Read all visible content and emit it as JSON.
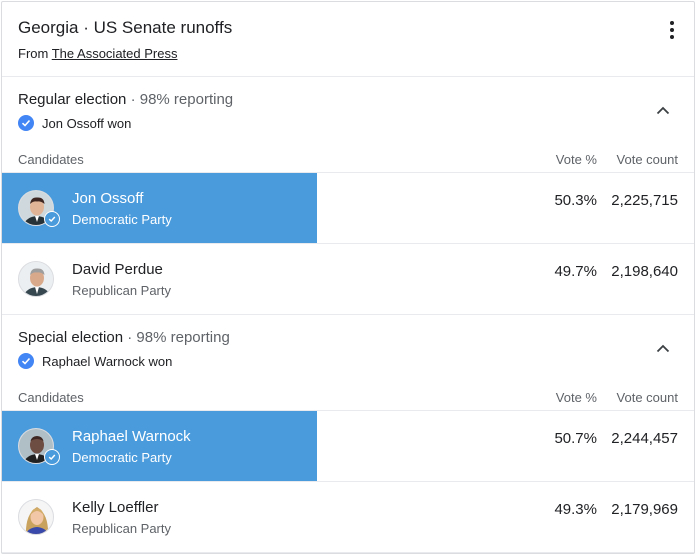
{
  "header": {
    "title": "Georgia · US Senate runoffs",
    "source_prefix": "From",
    "source_link": "The Associated Press"
  },
  "columns": {
    "candidates": "Candidates",
    "vote_pct": "Vote %",
    "vote_count": "Vote count"
  },
  "regular": {
    "title": "Regular election",
    "reporting": "· 98% reporting",
    "winner": "Jon Ossoff won",
    "candidates": [
      {
        "name": "Jon Ossoff",
        "party": "Democratic Party",
        "pct": "50.3%",
        "count": "2,225,715",
        "winner": true
      },
      {
        "name": "David Perdue",
        "party": "Republican Party",
        "pct": "49.7%",
        "count": "2,198,640",
        "winner": false
      }
    ]
  },
  "special": {
    "title": "Special election",
    "reporting": "· 98% reporting",
    "winner": "Raphael Warnock won",
    "candidates": [
      {
        "name": "Raphael Warnock",
        "party": "Democratic Party",
        "pct": "50.7%",
        "count": "2,244,457",
        "winner": true
      },
      {
        "name": "Kelly Loeffler",
        "party": "Republican Party",
        "pct": "49.3%",
        "count": "2,179,969",
        "winner": false
      }
    ]
  },
  "colors": {
    "winner_highlight": "#4a9bdc",
    "check_blue": "#4285f4",
    "divider": "#e8eaed"
  },
  "icons": {
    "more": "more-vert-icon",
    "collapse": "chevron-up-icon",
    "check": "check-circle-icon"
  }
}
